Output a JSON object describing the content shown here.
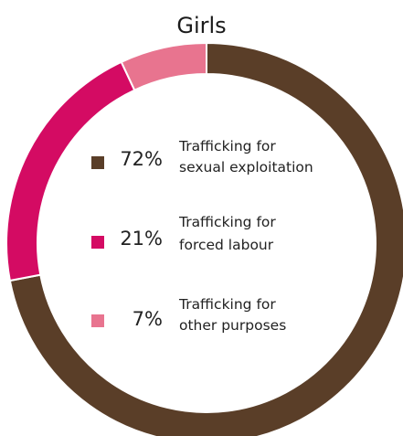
{
  "chart_data": {
    "type": "pie",
    "title": "Girls",
    "donut": true,
    "start_angle_deg": 0,
    "direction": "clockwise",
    "slices": [
      {
        "percent_label": "72%",
        "label_line1": "Trafficking for",
        "label_line2": "sexual exploitation",
        "value": 72,
        "color": "#5a3e28"
      },
      {
        "percent_label": "21%",
        "label_line1": "Trafficking for",
        "label_line2": "forced labour",
        "value": 21,
        "color": "#d40b63"
      },
      {
        "percent_label": "7%",
        "label_line1": "Trafficking for",
        "label_line2": "other purposes",
        "value": 7,
        "color": "#e8748f"
      }
    ]
  }
}
